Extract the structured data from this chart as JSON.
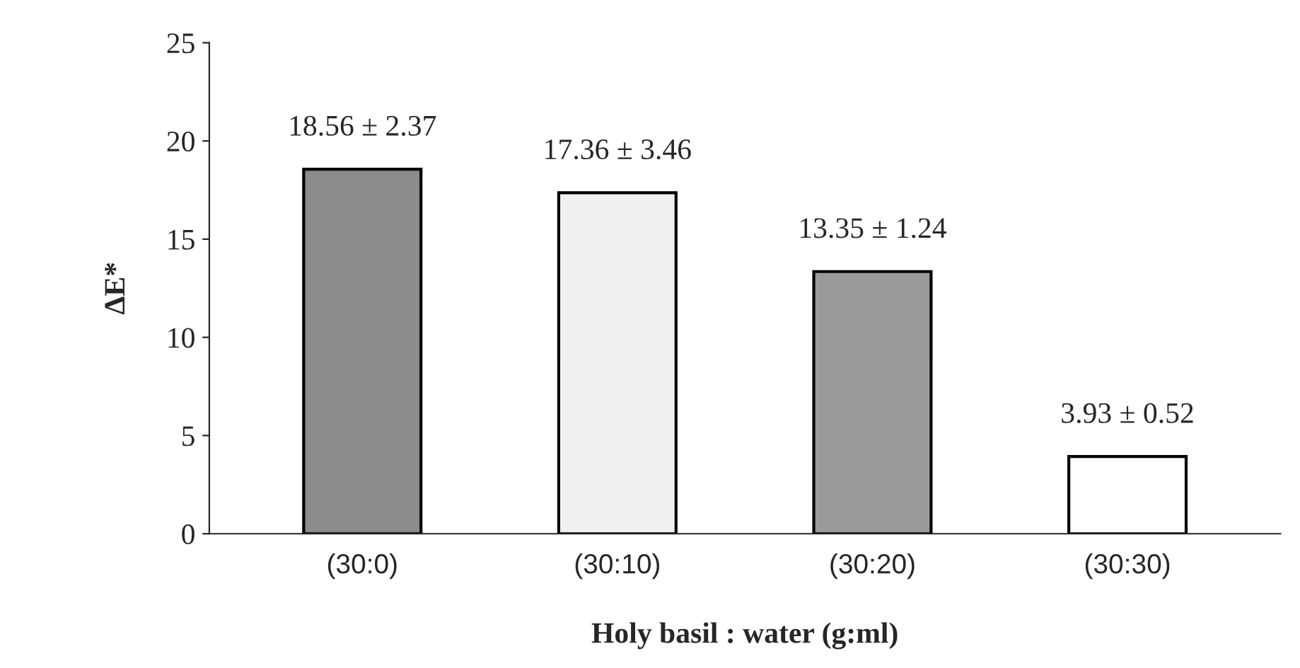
{
  "chart_data": {
    "type": "bar",
    "xlabel": "Holy basil : water (g:ml)",
    "ylabel": "ΔE*",
    "categories": [
      "(30:0)",
      "(30:10)",
      "(30:20)",
      "(30:30)"
    ],
    "values": [
      18.56,
      17.36,
      13.35,
      3.93
    ],
    "value_labels": [
      "18.56 ± 2.37",
      "17.36 ± 3.46",
      "13.35 ± 1.24",
      "3.93 ± 0.52"
    ],
    "colors": [
      "#8c8c8c",
      "#f0f0f0",
      "#9a9a9a",
      "#ffffff"
    ],
    "ylim": [
      0,
      25
    ],
    "yticks": [
      0,
      5,
      10,
      15,
      20,
      25
    ],
    "grid": false
  }
}
